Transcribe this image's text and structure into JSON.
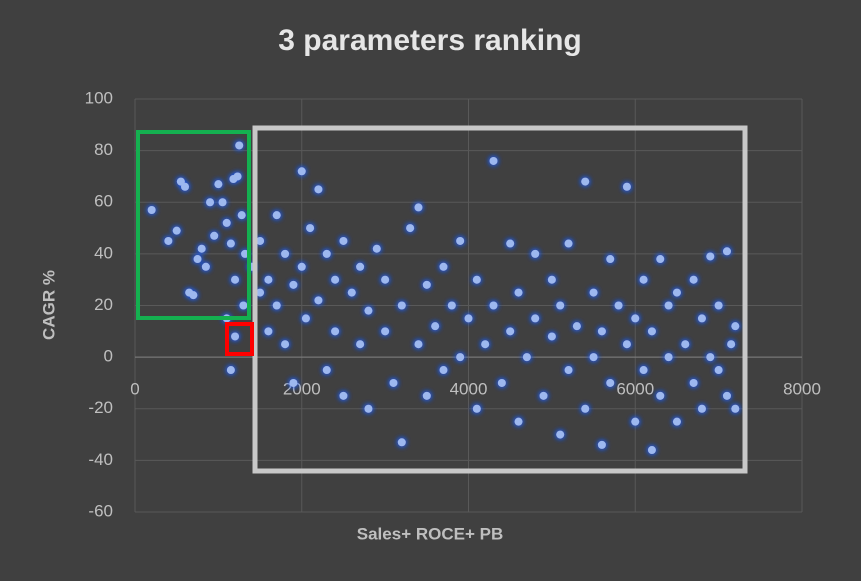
{
  "chart_data": {
    "type": "scatter",
    "title": "3 parameters ranking",
    "x_label": "Sales+ ROCE+ PB",
    "y_label": "CAGR %",
    "color": "#9db8ef",
    "grid": true,
    "xlim": [
      0,
      8000
    ],
    "xticks": [
      0,
      2000,
      4000,
      6000,
      8000
    ],
    "ylim": [
      -60,
      100
    ],
    "yticks": [
      -60,
      -40,
      -20,
      0,
      20,
      40,
      60,
      80,
      100
    ],
    "x": [
      200,
      400,
      500,
      550,
      600,
      650,
      700,
      750,
      800,
      850,
      900,
      950,
      1000,
      1050,
      1100,
      1150,
      1180,
      1200,
      1230,
      1250,
      1280,
      1300,
      1320,
      1200,
      1150,
      1100,
      1400,
      1500,
      1500,
      1600,
      1600,
      1700,
      1700,
      1800,
      1800,
      1900,
      1900,
      2000,
      2000,
      2050,
      2100,
      2200,
      2200,
      2300,
      2300,
      2400,
      2400,
      2500,
      2500,
      2600,
      2700,
      2700,
      2800,
      2800,
      2900,
      3000,
      3000,
      3100,
      3200,
      3200,
      3300,
      3400,
      3400,
      3500,
      3500,
      3600,
      3700,
      3700,
      3800,
      3900,
      3900,
      4000,
      4100,
      4100,
      4200,
      4300,
      4300,
      4400,
      4500,
      4500,
      4600,
      4600,
      4700,
      4800,
      4800,
      4900,
      5000,
      5000,
      5100,
      5100,
      5200,
      5200,
      5300,
      5400,
      5400,
      5500,
      5500,
      5600,
      5600,
      5700,
      5700,
      5800,
      5900,
      5900,
      6000,
      6000,
      6100,
      6100,
      6200,
      6200,
      6300,
      6300,
      6400,
      6400,
      6500,
      6500,
      6600,
      6700,
      6700,
      6800,
      6800,
      6900,
      6900,
      7000,
      7000,
      7100,
      7100,
      7150,
      7200,
      7200
    ],
    "y": [
      57,
      45,
      49,
      68,
      66,
      25,
      24,
      38,
      42,
      35,
      60,
      47,
      67,
      60,
      52,
      44,
      69,
      30,
      70,
      82,
      55,
      20,
      40,
      8,
      -5,
      15,
      35,
      25,
      45,
      10,
      30,
      55,
      20,
      40,
      5,
      28,
      -10,
      72,
      35,
      15,
      50,
      65,
      22,
      -5,
      40,
      30,
      10,
      -15,
      45,
      25,
      5,
      35,
      -20,
      18,
      42,
      10,
      30,
      -10,
      -33,
      20,
      50,
      58,
      5,
      28,
      -15,
      12,
      35,
      -5,
      20,
      0,
      45,
      15,
      -20,
      30,
      5,
      76,
      20,
      -10,
      44,
      10,
      -25,
      25,
      0,
      40,
      15,
      -15,
      8,
      30,
      -30,
      20,
      44,
      -5,
      12,
      68,
      -20,
      25,
      0,
      -34,
      10,
      38,
      -10,
      20,
      66,
      5,
      -25,
      15,
      30,
      -5,
      -36,
      10,
      38,
      -15,
      20,
      0,
      -25,
      25,
      5,
      -10,
      30,
      15,
      -20,
      39,
      0,
      -5,
      20,
      41,
      -15,
      5,
      -20,
      12
    ]
  }
}
